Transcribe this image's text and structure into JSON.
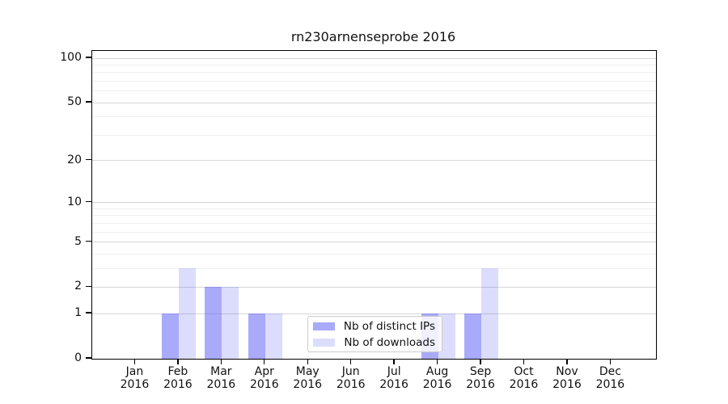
{
  "chart_data": {
    "type": "bar",
    "title": "rn230arnenseprobe 2016",
    "categories": [
      [
        "Jan",
        "2016"
      ],
      [
        "Feb",
        "2016"
      ],
      [
        "Mar",
        "2016"
      ],
      [
        "Apr",
        "2016"
      ],
      [
        "May",
        "2016"
      ],
      [
        "Jun",
        "2016"
      ],
      [
        "Jul",
        "2016"
      ],
      [
        "Aug",
        "2016"
      ],
      [
        "Sep",
        "2016"
      ],
      [
        "Oct",
        "2016"
      ],
      [
        "Nov",
        "2016"
      ],
      [
        "Dec",
        "2016"
      ]
    ],
    "series": [
      {
        "name": "Nb of distinct IPs",
        "color": "rgba(70,70,245,0.46)",
        "values": [
          0,
          1,
          2,
          1,
          0,
          0,
          0,
          1,
          1,
          0,
          0,
          0
        ]
      },
      {
        "name": "Nb of downloads",
        "color": "rgba(70,70,245,0.19)",
        "values": [
          0,
          3,
          2,
          1,
          0,
          0,
          0,
          1,
          3,
          0,
          0,
          0
        ]
      }
    ],
    "yscale": "log1p",
    "ymax": 112,
    "yticks_major": [
      0,
      1,
      2,
      5,
      10,
      20,
      50,
      100
    ],
    "yticks_minor": [
      3,
      4,
      6,
      7,
      8,
      9,
      30,
      40,
      60,
      70,
      80,
      90
    ],
    "grid": "on",
    "legend_position": "lower-center-inside",
    "colors": {
      "major_grid": "#d7d7d7",
      "minor_grid": "#efefef",
      "spine": "#000000",
      "background": "#ffffff"
    }
  }
}
